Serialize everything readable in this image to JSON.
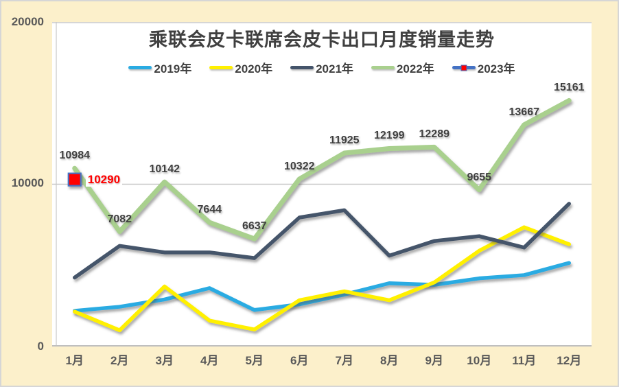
{
  "title": "乘联会皮卡联席会皮卡出口月度销量走势",
  "chart_data": {
    "type": "line",
    "title": "乘联会皮卡联席会皮卡出口月度销量走势",
    "categories": [
      "1月",
      "2月",
      "3月",
      "4月",
      "5月",
      "6月",
      "7月",
      "8月",
      "9月",
      "10月",
      "11月",
      "12月"
    ],
    "series": [
      {
        "name": "2019年",
        "color": "#29ABE2",
        "line_width": 5.5,
        "show_labels": false,
        "values": [
          2200,
          2450,
          2900,
          3600,
          2250,
          2600,
          3200,
          3900,
          3800,
          4200,
          4400,
          5150
        ]
      },
      {
        "name": "2020年",
        "color": "#FFF000",
        "line_width": 5.5,
        "show_labels": false,
        "values": [
          2150,
          1000,
          3700,
          1600,
          1050,
          2850,
          3400,
          2850,
          3950,
          5900,
          7350,
          6300
        ]
      },
      {
        "name": "2021年",
        "color": "#44546A",
        "line_width": 5.5,
        "show_labels": false,
        "values": [
          4250,
          6200,
          5800,
          5800,
          5450,
          7950,
          8400,
          5600,
          6500,
          6800,
          6100,
          8800
        ]
      },
      {
        "name": "2022年",
        "color": "#A9D08E",
        "line_width": 7,
        "show_labels": true,
        "label_color": "#3F3F3F",
        "values": [
          10984,
          7082,
          10142,
          7644,
          6637,
          10322,
          11925,
          12199,
          12289,
          9655,
          13667,
          15161
        ]
      },
      {
        "name": "2023年",
        "color": "#4472C4",
        "line_width": 5,
        "show_labels": true,
        "label_color": "#FF0000",
        "marker": "red-square",
        "marker_color": "#FF0000",
        "marker_border": "#4472C4",
        "values": [
          10290
        ]
      }
    ],
    "ylim": [
      0,
      20000
    ],
    "yticks": [
      0,
      10000,
      20000
    ],
    "ytick_labels": [
      "0",
      "10000",
      "20000"
    ],
    "grid": "horizontal",
    "legend_position": "top",
    "background": "#FCF0CB",
    "plot_background": "#FFFFFF",
    "gridline_color": "#C8C8C8",
    "axis_line_color": "#BFBFBF"
  }
}
